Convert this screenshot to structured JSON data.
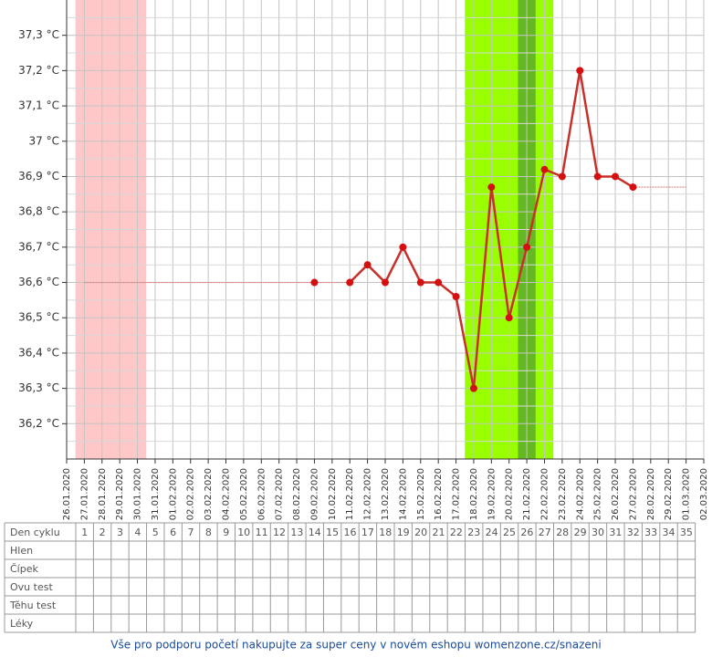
{
  "chart_data": {
    "type": "line",
    "categories": [
      "26.01.2020",
      "27.01.2020",
      "28.01.2020",
      "29.01.2020",
      "30.01.2020",
      "31.01.2020",
      "01.02.2020",
      "02.02.2020",
      "03.02.2020",
      "04.02.2020",
      "05.02.2020",
      "06.02.2020",
      "07.02.2020",
      "08.02.2020",
      "09.02.2020",
      "10.02.2020",
      "11.02.2020",
      "12.02.2020",
      "13.02.2020",
      "14.02.2020",
      "15.02.2020",
      "16.02.2020",
      "17.02.2020",
      "18.02.2020",
      "19.02.2020",
      "20.02.2020",
      "21.02.2020",
      "22.02.2020",
      "23.02.2020",
      "24.02.2020",
      "25.02.2020",
      "26.02.2020",
      "27.02.2020",
      "28.02.2020",
      "29.02.2020",
      "01.03.2020",
      "02.03.2020"
    ],
    "series": [
      {
        "color": "#c8302a",
        "marker_color": "#d41010",
        "values": [
          null,
          null,
          null,
          null,
          null,
          null,
          null,
          null,
          null,
          null,
          null,
          null,
          null,
          null,
          36.6,
          null,
          36.6,
          36.65,
          36.6,
          36.7,
          36.6,
          36.6,
          36.56,
          36.3,
          36.87,
          36.5,
          36.7,
          36.92,
          36.9,
          37.2,
          36.9,
          36.9,
          36.87,
          null,
          null,
          null,
          null
        ]
      },
      {
        "color": "#d88080",
        "values": [
          null,
          36.6,
          36.6,
          36.6,
          36.6,
          36.6,
          36.6,
          36.6,
          36.6,
          36.6,
          36.6,
          36.6,
          36.6,
          36.6,
          36.6,
          36.6,
          36.6,
          null,
          null,
          null,
          null,
          null,
          null,
          null,
          null,
          null,
          null,
          null,
          null,
          null,
          null,
          null,
          36.87,
          36.87,
          36.87,
          36.87,
          null
        ]
      }
    ],
    "bands": [
      {
        "start": "27.01.2020",
        "end": "30.01.2020",
        "color": "#ffc8c8"
      },
      {
        "start": "18.02.2020",
        "end": "22.02.2020",
        "color": "#99ff00"
      },
      {
        "start": "21.02.2020",
        "end": "21.02.2020",
        "color": "#66b822"
      }
    ],
    "ylim": [
      36.1,
      37.4
    ],
    "yticks": [
      {
        "value": 36.2,
        "label": "36,2 °C"
      },
      {
        "value": 36.3,
        "label": "36,3 °C"
      },
      {
        "value": 36.4,
        "label": "36,4 °C"
      },
      {
        "value": 36.5,
        "label": "36,5 °C"
      },
      {
        "value": 36.6,
        "label": "36,6 °C"
      },
      {
        "value": 36.7,
        "label": "36,7 °C"
      },
      {
        "value": 36.8,
        "label": "36,8 °C"
      },
      {
        "value": 36.9,
        "label": "36,9 °C"
      },
      {
        "value": 37,
        "label": "37 °C"
      },
      {
        "value": 37.1,
        "label": "37,1 °C"
      },
      {
        "value": 37.2,
        "label": "37,2 °C"
      },
      {
        "value": 37.3,
        "label": "37,3 °C"
      }
    ],
    "grid": true
  },
  "table": {
    "rows": [
      {
        "label": "Den cyklu",
        "cells": [
          1,
          2,
          3,
          4,
          5,
          6,
          7,
          8,
          9,
          10,
          11,
          12,
          13,
          14,
          15,
          16,
          17,
          18,
          19,
          20,
          21,
          22,
          23,
          24,
          25,
          26,
          27,
          28,
          29,
          30,
          31,
          32,
          33,
          34,
          35
        ]
      },
      {
        "label": "Hlen"
      },
      {
        "label": "Čípek"
      },
      {
        "label": "Ovu test"
      },
      {
        "label": "Těhu test"
      },
      {
        "label": "Léky"
      }
    ]
  },
  "footer": {
    "link": "Vše pro podporu početí nakupujte za super ceny v novém eshopu womenzone.cz/snazeni"
  }
}
